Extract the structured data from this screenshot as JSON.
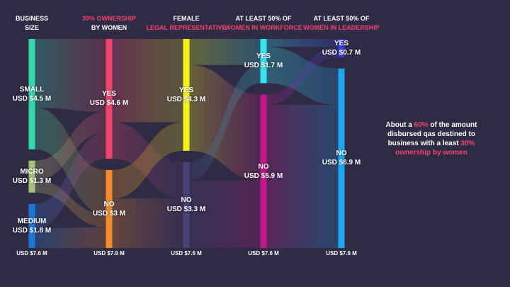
{
  "chart_data": {
    "type": "sankey",
    "stages": [
      {
        "header": [
          "BUSINESS",
          "SIZE"
        ],
        "header_accent": [
          false,
          false
        ],
        "total": "USD $7.6 M",
        "nodes": [
          {
            "id": "small",
            "name": "SMALL",
            "value_label": "USD $4.5 M",
            "value": 4.5,
            "color": "#34d7a9"
          },
          {
            "id": "micro",
            "name": "MICRO",
            "value_label": "USD $1.3 M",
            "value": 1.3,
            "color": "#a8c377"
          },
          {
            "id": "medium",
            "name": "MEDIUM",
            "value_label": "USD $1.8 M",
            "value": 1.8,
            "color": "#1f74d6"
          }
        ]
      },
      {
        "header": [
          "30% OWNERSHIP",
          "BY WOMEN"
        ],
        "header_accent": [
          true,
          false
        ],
        "total": "USD $7.6 M",
        "nodes": [
          {
            "id": "own_yes",
            "name": "YES",
            "value_label": "USD $4.6 M",
            "value": 4.6,
            "color": "#f0436b"
          },
          {
            "id": "own_no",
            "name": "NO",
            "value_label": "USD $3 M",
            "value": 3.0,
            "color": "#f38a2b"
          }
        ]
      },
      {
        "header": [
          "FEMALE",
          "LEGAL REPRESENTATIVE"
        ],
        "header_accent": [
          false,
          true
        ],
        "total": "USD $7.6 M",
        "nodes": [
          {
            "id": "legal_yes",
            "name": "YES",
            "value_label": "USD $4.3 M",
            "value": 4.3,
            "color": "#f5f11e"
          },
          {
            "id": "legal_no",
            "name": "NO",
            "value_label": "USD $3.3 M",
            "value": 3.3,
            "color": "#4d3f77"
          }
        ]
      },
      {
        "header": [
          "AT LEAST 50% OF",
          "WOMEN IN WORKFORCE"
        ],
        "header_accent": [
          false,
          true
        ],
        "total": "USD $7.6 M",
        "nodes": [
          {
            "id": "work_yes",
            "name": "YES",
            "value_label": "USD $1.7 M",
            "value": 1.7,
            "color": "#36e3f0"
          },
          {
            "id": "work_no",
            "name": "NO",
            "value_label": "USD $5.9 M",
            "value": 5.9,
            "color": "#c4168c"
          }
        ]
      },
      {
        "header": [
          "AT LEAST 50% OF",
          "WOMEN IN LEADERSHIP"
        ],
        "header_accent": [
          false,
          true
        ],
        "total": "USD $7.6 M",
        "nodes": [
          {
            "id": "lead_yes",
            "name": "YES",
            "value_label": "USD $0.7 M",
            "value": 0.7,
            "color": "#3b3fe0"
          },
          {
            "id": "lead_no",
            "name": "NO",
            "value_label": "USD $6.9 M",
            "value": 6.9,
            "color": "#1ea6f2"
          }
        ]
      }
    ],
    "links": [
      {
        "source": "small",
        "target": "own_yes",
        "value": 2.8
      },
      {
        "source": "small",
        "target": "own_no",
        "value": 1.7
      },
      {
        "source": "micro",
        "target": "own_yes",
        "value": 0.8
      },
      {
        "source": "micro",
        "target": "own_no",
        "value": 0.5
      },
      {
        "source": "medium",
        "target": "own_yes",
        "value": 1.0
      },
      {
        "source": "medium",
        "target": "own_no",
        "value": 0.8
      },
      {
        "source": "own_yes",
        "target": "legal_yes",
        "value": 3.2
      },
      {
        "source": "own_yes",
        "target": "legal_no",
        "value": 1.4
      },
      {
        "source": "own_no",
        "target": "legal_yes",
        "value": 1.1
      },
      {
        "source": "own_no",
        "target": "legal_no",
        "value": 1.9
      },
      {
        "source": "legal_yes",
        "target": "work_yes",
        "value": 1.0
      },
      {
        "source": "legal_yes",
        "target": "work_no",
        "value": 3.3
      },
      {
        "source": "legal_no",
        "target": "work_yes",
        "value": 0.7
      },
      {
        "source": "legal_no",
        "target": "work_no",
        "value": 2.6
      },
      {
        "source": "work_yes",
        "target": "lead_yes",
        "value": 0.3
      },
      {
        "source": "work_yes",
        "target": "lead_no",
        "value": 1.4
      },
      {
        "source": "work_no",
        "target": "lead_yes",
        "value": 0.4
      },
      {
        "source": "work_no",
        "target": "lead_no",
        "value": 5.5
      }
    ]
  },
  "annotation": {
    "part1": "About a ",
    "pct": "60%",
    "part2": " of the amount disbursed qas destined to business with a least ",
    "pct2": "30%",
    "part3": " ownership by women"
  }
}
